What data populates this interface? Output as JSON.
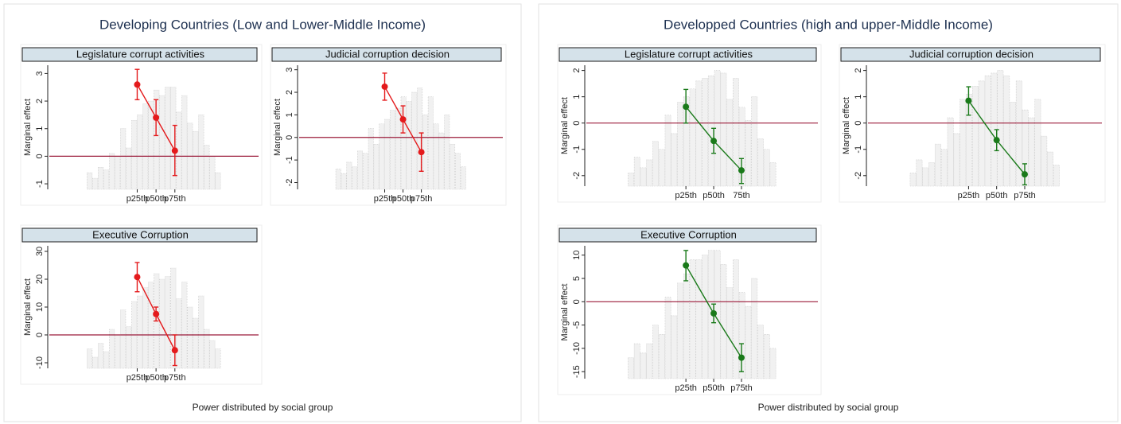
{
  "panels": [
    {
      "title": "Developing Countries (Low and Lower-Middle Income)",
      "x_label": "Power distributed by social group"
    },
    {
      "title": "Developped Countries (high and upper-Middle Income)",
      "x_label": "Power distributed by social group"
    }
  ],
  "chart_data": [
    {
      "type": "line",
      "title": "Legislature corrupt activities",
      "y_label": "Marginal effect",
      "categories": [
        "p25th",
        "p50th",
        "p75th"
      ],
      "values": [
        2.6,
        1.4,
        0.2
      ],
      "lower": [
        2.05,
        0.75,
        -0.7
      ],
      "upper": [
        3.15,
        2.05,
        1.12
      ],
      "color": "#e41a1c",
      "ylim": [
        -1.2,
        3.3
      ],
      "yticks": [
        -1,
        0,
        1,
        2,
        3
      ],
      "reference_line": 0,
      "background_bars": [
        -0.6,
        -0.8,
        -0.4,
        -0.5,
        0.1,
        0,
        1.0,
        0.3,
        1.3,
        1.5,
        1.9,
        2.0,
        2.4,
        2.2,
        2.5,
        2.5,
        1.6,
        2.2,
        1.2,
        0.9,
        1.5,
        0.4,
        0,
        -0.6
      ]
    },
    {
      "type": "line",
      "title": "Judicial corruption decision",
      "y_label": "Marginal effect",
      "categories": [
        "p25th",
        "p50th",
        "p75th"
      ],
      "values": [
        2.25,
        0.8,
        -0.65
      ],
      "lower": [
        1.65,
        0.2,
        -1.5
      ],
      "upper": [
        2.85,
        1.4,
        0.2
      ],
      "color": "#e41a1c",
      "ylim": [
        -2.3,
        3.2
      ],
      "yticks": [
        -2,
        -1,
        0,
        1,
        2,
        3
      ],
      "reference_line": 0,
      "background_bars": [
        -1.4,
        -1.6,
        -1.1,
        -1.3,
        -0.6,
        -0.7,
        0.4,
        -0.3,
        0.6,
        0.8,
        1.2,
        1.3,
        1.8,
        1.6,
        2.0,
        2.2,
        1.0,
        1.8,
        0.6,
        0.2,
        1.0,
        -0.3,
        -0.7,
        -1.3
      ]
    },
    {
      "type": "line",
      "title": "Executive Corruption",
      "y_label": "Marginal  effect",
      "categories": [
        "p25th",
        "p50th",
        "p75th"
      ],
      "values": [
        20.8,
        7.5,
        -5.5
      ],
      "lower": [
        15.5,
        5,
        -11
      ],
      "upper": [
        26,
        10,
        0
      ],
      "color": "#e41a1c",
      "ylim": [
        -12,
        32
      ],
      "yticks": [
        -10,
        0,
        10,
        20,
        30
      ],
      "reference_line": 0,
      "background_bars": [
        -5,
        -8,
        -3,
        -6,
        2,
        0,
        9,
        3,
        12,
        14,
        17,
        19,
        22,
        20,
        21,
        24,
        13,
        19,
        10,
        6,
        14,
        2,
        -2,
        -5
      ]
    },
    {
      "type": "line",
      "title": "Legislature corrupt activities",
      "y_label": "Marginal effect",
      "categories": [
        "p25th",
        "p50th",
        "75th"
      ],
      "values": [
        0.62,
        -0.68,
        -1.8
      ],
      "lower": [
        0,
        -1.15,
        -2.3
      ],
      "upper": [
        1.28,
        -0.2,
        -1.35
      ],
      "color": "#1a7a1a",
      "ylim": [
        -2.4,
        2.2
      ],
      "yticks": [
        -2,
        -1,
        0,
        1,
        2
      ],
      "reference_line": 0,
      "background_bars": [
        -1.9,
        -1.3,
        -1.7,
        -1.4,
        -0.7,
        -1.0,
        0.3,
        -0.4,
        0.8,
        1.0,
        1.3,
        1.6,
        1.7,
        1.8,
        2.0,
        1.9,
        0.9,
        1.7,
        0.6,
        0.1,
        1.0,
        -0.6,
        -1.0,
        -1.5
      ]
    },
    {
      "type": "line",
      "title": "Judicial corruption decision",
      "y_label": "Marginal effect",
      "categories": [
        "p25th",
        "p50th",
        "p75th"
      ],
      "values": [
        0.85,
        -0.65,
        -1.95
      ],
      "lower": [
        0.3,
        -1.05,
        -2.35
      ],
      "upper": [
        1.38,
        -0.25,
        -1.55
      ],
      "color": "#1a7a1a",
      "ylim": [
        -2.4,
        2.2
      ],
      "yticks": [
        -2,
        -1,
        0,
        1,
        2
      ],
      "reference_line": 0,
      "background_bars": [
        -1.9,
        -1.4,
        -1.7,
        -1.5,
        -0.8,
        -1.0,
        0.2,
        -0.4,
        0.9,
        1.1,
        1.4,
        1.6,
        1.8,
        1.9,
        2.0,
        1.8,
        0.8,
        1.6,
        0.5,
        0.2,
        0.9,
        -0.5,
        -1.1,
        -1.6
      ]
    },
    {
      "type": "line",
      "title": "Executive Corruption",
      "y_label": "Marginal effect",
      "categories": [
        "p25th",
        "p50th",
        "p75th"
      ],
      "values": [
        7.8,
        -2.5,
        -12
      ],
      "lower": [
        4.5,
        -4.5,
        -15
      ],
      "upper": [
        11,
        -0.5,
        -9
      ],
      "color": "#1a7a1a",
      "ylim": [
        -16.5,
        12
      ],
      "yticks": [
        -15,
        -10,
        -5,
        0,
        5,
        10
      ],
      "reference_line": 0,
      "background_bars": [
        -12,
        -9,
        -11,
        -9,
        -5,
        -7,
        1,
        -3,
        4,
        6,
        9,
        9,
        10,
        11,
        11,
        8,
        3,
        9,
        2,
        -1,
        5,
        -5,
        -7,
        -10
      ]
    }
  ]
}
